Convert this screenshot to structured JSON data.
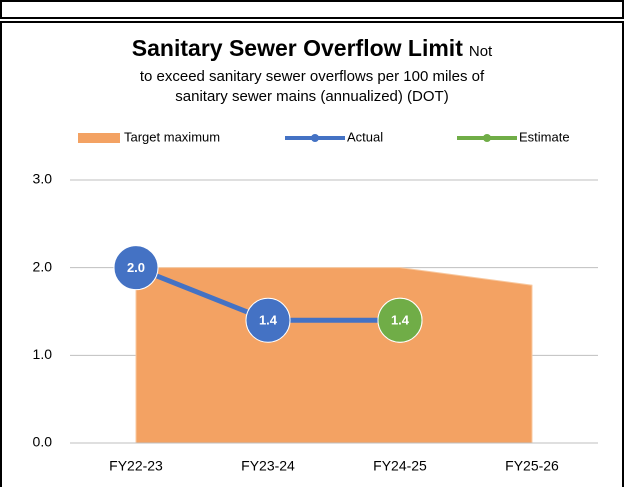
{
  "chart_data": {
    "type": "line",
    "title": "Sanitary Sewer Overflow Limit",
    "subtitle_lines": [
      "Not",
      "to exceed sanitary sewer overflows per 100 miles of",
      "sanitary sewer mains (annualized) (DOT)"
    ],
    "categories": [
      "FY22-23",
      "FY23-24",
      "FY24-25",
      "FY25-26"
    ],
    "series": [
      {
        "name": "Target maximum",
        "kind": "area",
        "color": "#f3a263",
        "values": [
          2.0,
          2.0,
          2.0,
          1.8
        ]
      },
      {
        "name": "Actual",
        "kind": "line",
        "color": "#4472c4",
        "values": [
          2.0,
          1.4,
          1.4,
          null
        ],
        "value_labels": [
          "2.0",
          "1.4",
          "1.4",
          null
        ]
      },
      {
        "name": "Estimate",
        "kind": "line",
        "color": "#70ad47",
        "values": [
          null,
          null,
          1.4,
          null
        ],
        "value_labels": [
          null,
          null,
          "1.4",
          null
        ]
      }
    ],
    "ylim": [
      0,
      3
    ],
    "yticks": [
      {
        "value": 0,
        "label": "0.0"
      },
      {
        "value": 1,
        "label": "1.0"
      },
      {
        "value": 2,
        "label": "2.0"
      },
      {
        "value": 3,
        "label": "3.0"
      }
    ],
    "grid": true
  }
}
